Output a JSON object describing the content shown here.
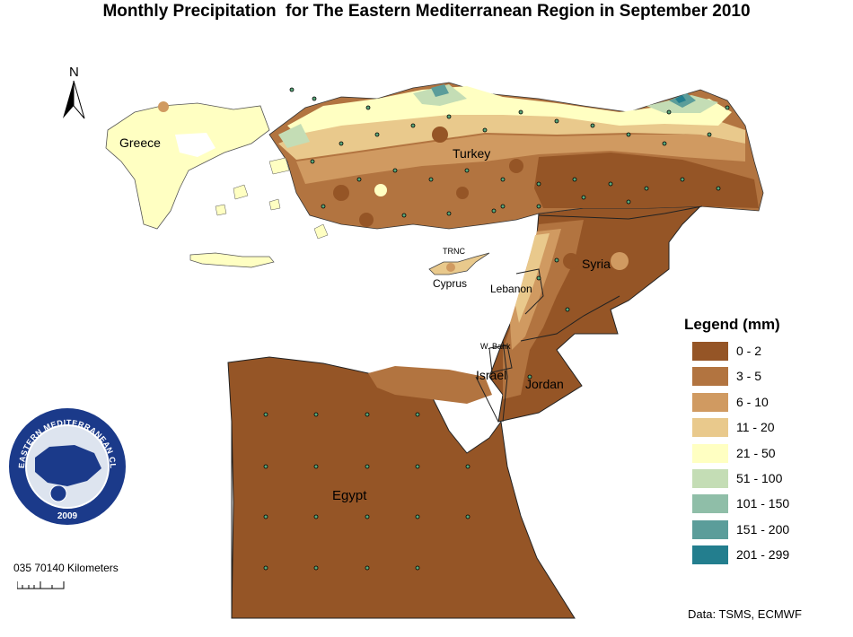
{
  "title": "Monthly Precipitation  for The Eastern Mediterranean Region in September 2010",
  "north_label": "N",
  "country_labels": {
    "greece": "Greece",
    "turkey": "Turkey",
    "syria": "Syria",
    "cyprus": "Cyprus",
    "trnc": "TRNC",
    "lebanon": "Lebanon",
    "west_bank": "W. Bank",
    "israel": "Israel",
    "jordan": "Jordan",
    "egypt": "Egypt"
  },
  "legend": {
    "title": "Legend (mm)",
    "items": [
      {
        "label": "0 - 2",
        "color": "#955526"
      },
      {
        "label": "3 - 5",
        "color": "#b27440"
      },
      {
        "label": "6 - 10",
        "color": "#d09a61"
      },
      {
        "label": "11 - 20",
        "color": "#e9c98c"
      },
      {
        "label": "21 - 50",
        "color": "#ffffc2"
      },
      {
        "label": "51 - 100",
        "color": "#c4ddb5"
      },
      {
        "label": "101 - 150",
        "color": "#8fbea8"
      },
      {
        "label": "151 - 200",
        "color": "#5b9d9a"
      },
      {
        "label": "201 - 299",
        "color": "#237e8e"
      }
    ]
  },
  "scale": {
    "text": "035 70140 Kilometers"
  },
  "source": "Data:  TSMS, ECMWF",
  "logo": {
    "top_text": "EASTERN MEDITERRANEAN CLIMATE CENTRE",
    "year": "2009"
  }
}
